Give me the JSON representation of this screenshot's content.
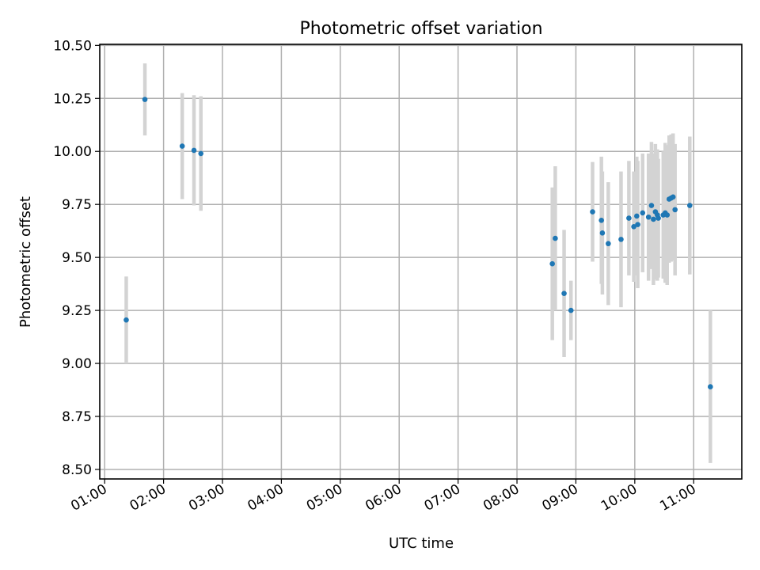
{
  "chart_data": {
    "type": "scatter",
    "title": "Photometric offset variation",
    "xlabel": "UTC time",
    "ylabel": "Photometric offset",
    "date": "",
    "xlim": [
      "00:55",
      "11:49"
    ],
    "ylim": [
      8.455,
      10.505
    ],
    "x_ticks": [
      "01:00",
      "02:00",
      "03:00",
      "04:00",
      "05:00",
      "06:00",
      "07:00",
      "08:00",
      "09:00",
      "10:00",
      "11:00"
    ],
    "y_ticks": [
      "8.50",
      "8.75",
      "9.00",
      "9.25",
      "9.50",
      "9.75",
      "10.00",
      "10.25",
      "10.50"
    ],
    "grid": true,
    "legend": "none",
    "colors": {
      "point": "#1f77b4",
      "errorbar": "#d3d3d3",
      "grid": "#b0b0b0"
    },
    "points": [
      {
        "t": "01:22",
        "y": 9.205,
        "err": 0.205
      },
      {
        "t": "01:41",
        "y": 10.245,
        "err": 0.17
      },
      {
        "t": "02:19",
        "y": 10.025,
        "err": 0.25
      },
      {
        "t": "02:31",
        "y": 10.005,
        "err": 0.26
      },
      {
        "t": "02:38",
        "y": 9.99,
        "err": 0.27
      },
      {
        "t": "08:36",
        "y": 9.47,
        "err": 0.36
      },
      {
        "t": "08:39",
        "y": 9.59,
        "err": 0.34
      },
      {
        "t": "08:48",
        "y": 9.33,
        "err": 0.3
      },
      {
        "t": "08:55",
        "y": 9.25,
        "err": 0.14
      },
      {
        "t": "09:17",
        "y": 9.715,
        "err": 0.235
      },
      {
        "t": "09:26",
        "y": 9.675,
        "err": 0.3
      },
      {
        "t": "09:27",
        "y": 9.615,
        "err": 0.29
      },
      {
        "t": "09:33",
        "y": 9.565,
        "err": 0.29
      },
      {
        "t": "09:46",
        "y": 9.585,
        "err": 0.32
      },
      {
        "t": "09:54",
        "y": 9.685,
        "err": 0.27
      },
      {
        "t": "09:59",
        "y": 9.645,
        "err": 0.26
      },
      {
        "t": "10:02",
        "y": 9.695,
        "err": 0.28
      },
      {
        "t": "10:03",
        "y": 9.655,
        "err": 0.3
      },
      {
        "t": "10:08",
        "y": 9.71,
        "err": 0.28
      },
      {
        "t": "10:14",
        "y": 9.69,
        "err": 0.3
      },
      {
        "t": "10:17",
        "y": 9.745,
        "err": 0.3
      },
      {
        "t": "10:19",
        "y": 9.68,
        "err": 0.31
      },
      {
        "t": "10:21",
        "y": 9.715,
        "err": 0.32
      },
      {
        "t": "10:23",
        "y": 9.7,
        "err": 0.31
      },
      {
        "t": "10:24",
        "y": 9.685,
        "err": 0.28
      },
      {
        "t": "10:29",
        "y": 9.7,
        "err": 0.3
      },
      {
        "t": "10:31",
        "y": 9.71,
        "err": 0.33
      },
      {
        "t": "10:33",
        "y": 9.7,
        "err": 0.33
      },
      {
        "t": "10:35",
        "y": 9.775,
        "err": 0.3
      },
      {
        "t": "10:37",
        "y": 9.78,
        "err": 0.3
      },
      {
        "t": "10:39",
        "y": 9.785,
        "err": 0.3
      },
      {
        "t": "10:41",
        "y": 9.725,
        "err": 0.31
      },
      {
        "t": "10:56",
        "y": 9.745,
        "err": 0.325
      },
      {
        "t": "11:17",
        "y": 8.89,
        "err": 0.36
      }
    ]
  }
}
